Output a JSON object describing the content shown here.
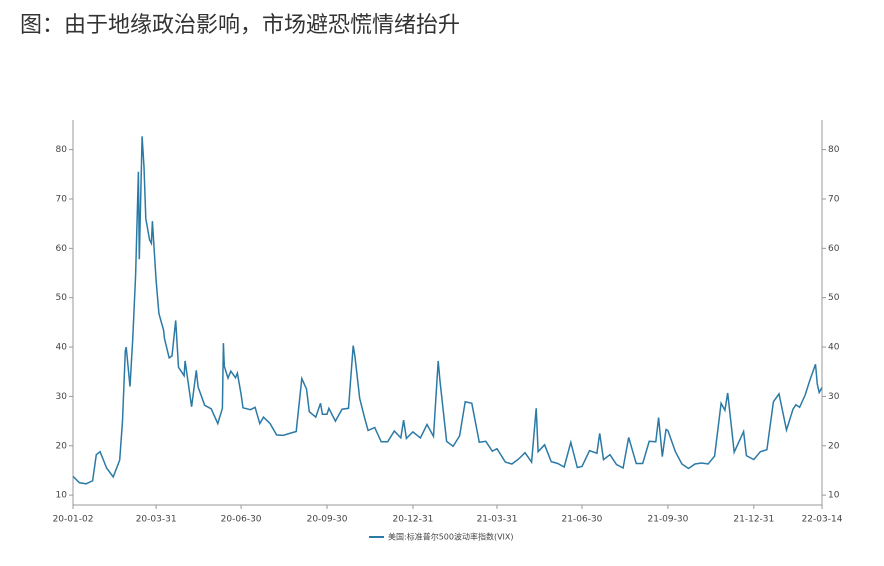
{
  "chart_data": {
    "type": "line",
    "title": "图：由于地缘政治影响，市场避恐慌情绪抬升",
    "x": [
      "20-01-02",
      "20-01-09",
      "20-01-16",
      "20-01-23",
      "20-01-27",
      "20-01-31",
      "20-02-07",
      "20-02-14",
      "20-02-21",
      "20-02-24",
      "20-02-27",
      "20-02-28",
      "20-03-03",
      "20-03-06",
      "20-03-09",
      "20-03-12",
      "20-03-13",
      "20-03-16",
      "20-03-18",
      "20-03-20",
      "20-03-24",
      "20-03-26",
      "20-03-27",
      "20-03-31",
      "20-04-03",
      "20-04-08",
      "20-04-09",
      "20-04-14",
      "20-04-17",
      "20-04-21",
      "20-04-24",
      "20-04-30",
      "20-05-01",
      "20-05-08",
      "20-05-13",
      "20-05-15",
      "20-05-22",
      "20-05-29",
      "20-06-05",
      "20-06-10",
      "20-06-11",
      "20-06-12",
      "20-06-16",
      "20-06-19",
      "20-06-24",
      "20-06-26",
      "20-06-30",
      "20-07-02",
      "20-07-10",
      "20-07-15",
      "20-07-20",
      "20-07-24",
      "20-07-31",
      "20-08-07",
      "20-08-14",
      "20-08-21",
      "20-08-28",
      "20-09-03",
      "20-09-08",
      "20-09-11",
      "20-09-18",
      "20-09-23",
      "20-09-25",
      "20-09-30",
      "20-10-02",
      "20-10-09",
      "20-10-16",
      "20-10-23",
      "20-10-28",
      "20-10-30",
      "20-11-04",
      "20-11-09",
      "20-11-13",
      "20-11-20",
      "20-11-27",
      "20-12-04",
      "20-12-11",
      "20-12-18",
      "20-12-21",
      "20-12-24",
      "20-12-31",
      "21-01-08",
      "21-01-15",
      "21-01-22",
      "21-01-27",
      "21-01-29",
      "21-02-05",
      "21-02-12",
      "21-02-19",
      "21-02-25",
      "21-03-04",
      "21-03-12",
      "21-03-19",
      "21-03-26",
      "21-03-31",
      "21-04-09",
      "21-04-16",
      "21-04-23",
      "21-04-30",
      "21-05-07",
      "21-05-12",
      "21-05-14",
      "21-05-21",
      "21-05-28",
      "21-06-04",
      "21-06-11",
      "21-06-18",
      "21-06-25",
      "21-06-30",
      "21-07-08",
      "21-07-16",
      "21-07-19",
      "21-07-23",
      "21-07-30",
      "21-08-06",
      "21-08-13",
      "21-08-19",
      "21-08-27",
      "21-09-03",
      "21-09-10",
      "21-09-17",
      "21-09-20",
      "21-09-24",
      "21-09-28",
      "21-09-30",
      "21-10-08",
      "21-10-15",
      "21-10-22",
      "21-10-29",
      "21-11-05",
      "21-11-12",
      "21-11-19",
      "21-11-26",
      "21-11-30",
      "21-12-03",
      "21-12-10",
      "21-12-17",
      "21-12-20",
      "21-12-23",
      "21-12-31",
      "22-01-07",
      "22-01-14",
      "22-01-21",
      "22-01-27",
      "22-02-04",
      "22-02-11",
      "22-02-14",
      "22-02-18",
      "22-02-24",
      "22-03-01",
      "22-03-07",
      "22-03-09",
      "22-03-11",
      "22-03-14"
    ],
    "series": [
      {
        "name": "美国:标准普尔500波动率指数(VIX)",
        "color": "#2b7aa6",
        "values": [
          13.8,
          12.5,
          12.3,
          12.9,
          18.2,
          18.8,
          15.5,
          13.7,
          17.1,
          25,
          39.2,
          40,
          32,
          41.9,
          54.5,
          75.5,
          57.8,
          82.7,
          76.5,
          66,
          61.7,
          61,
          65.5,
          53.5,
          46.8,
          43.4,
          41.7,
          37.8,
          38.2,
          45.4,
          35.9,
          34.2,
          37.2,
          27.9,
          35.3,
          31.9,
          28.2,
          27.5,
          24.5,
          27.6,
          40.8,
          36.1,
          33.7,
          35.1,
          33.8,
          34.7,
          30.4,
          27.7,
          27.3,
          27.8,
          24.5,
          25.8,
          24.5,
          22.2,
          22.1,
          22.5,
          22.9,
          33.6,
          31.5,
          26.9,
          25.8,
          28.6,
          26.4,
          26.4,
          27.6,
          25,
          27.4,
          27.6,
          40.3,
          38,
          29.6,
          25.8,
          23.1,
          23.7,
          20.8,
          20.8,
          23,
          21.6,
          25.2,
          21.5,
          22.8,
          21.6,
          24.3,
          21.9,
          37.2,
          33.1,
          20.9,
          19.9,
          22,
          28.9,
          28.6,
          20.7,
          20.9,
          18.9,
          19.4,
          16.7,
          16.3,
          17.3,
          18.6,
          16.7,
          27.6,
          18.8,
          20.2,
          16.8,
          16.4,
          15.7,
          20.7,
          15.6,
          15.8,
          19,
          18.5,
          22.5,
          17.2,
          18.2,
          16.2,
          15.5,
          21.7,
          16.4,
          16.4,
          20.9,
          20.8,
          25.7,
          17.8,
          23.3,
          23.1,
          18.8,
          16.3,
          15.4,
          16.3,
          16.5,
          16.3,
          17.9,
          28.6,
          27.2,
          30.7,
          18.7,
          21.6,
          22.9,
          18,
          17.2,
          18.8,
          19.2,
          28.9,
          30.5,
          23.2,
          27.4,
          28.3,
          27.8,
          30.3,
          33.3,
          36.5,
          32.5,
          30.8,
          31.8
        ]
      }
    ],
    "xlim": [
      "20-01-02",
      "22-03-14"
    ],
    "xticks": [
      "20-01-02",
      "20-03-31",
      "20-06-30",
      "20-09-30",
      "20-12-31",
      "21-03-31",
      "21-06-30",
      "21-09-30",
      "21-12-31",
      "22-03-14"
    ],
    "ylim": [
      8,
      86
    ],
    "yticks": [
      10,
      20,
      30,
      40,
      50,
      60,
      70,
      80
    ],
    "y2lim": [
      8,
      86
    ],
    "y2ticks": [
      10,
      20,
      30,
      40,
      50,
      60,
      70,
      80
    ],
    "legend": "bottom"
  }
}
